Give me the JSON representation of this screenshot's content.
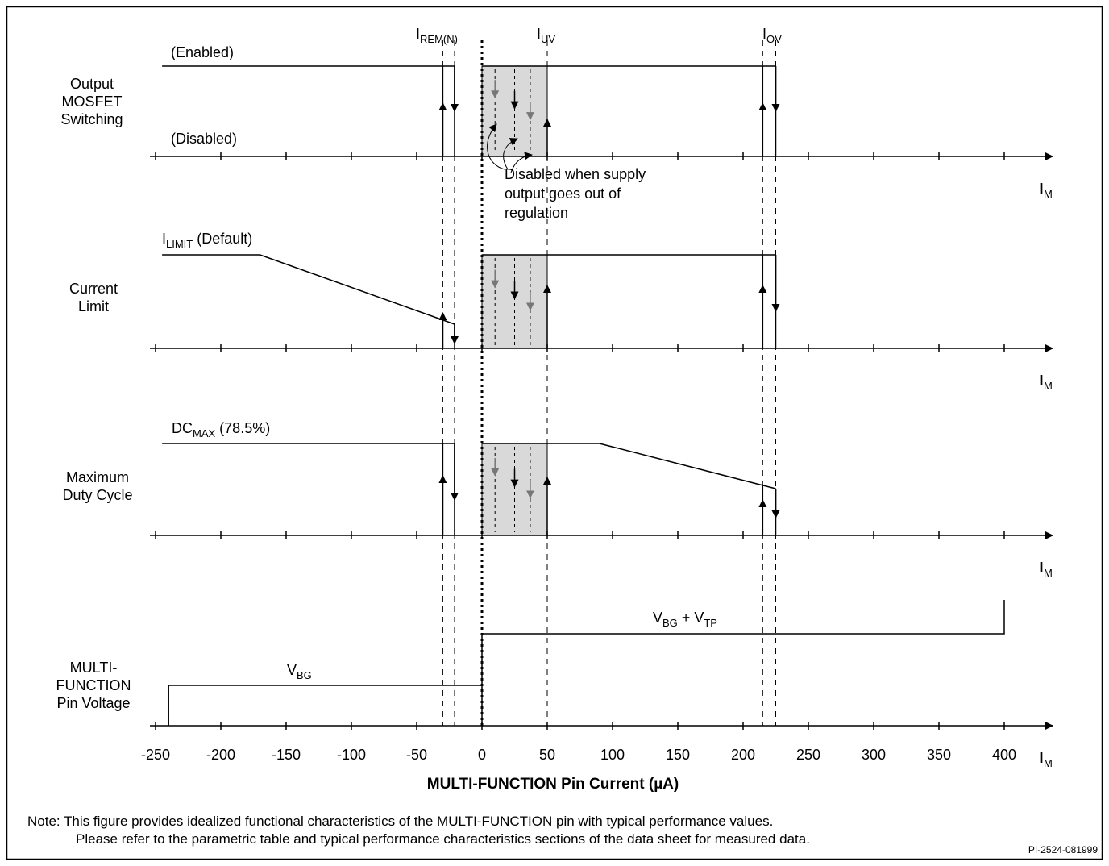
{
  "figure_id": "PI-2524-081999",
  "x_axis": {
    "title": "MULTI-FUNCTION Pin Current (µA)",
    "variable": "I",
    "variable_sub": "M",
    "ticks": [
      "-250",
      "-200",
      "-150",
      "-100",
      "-50",
      "0",
      "50",
      "100",
      "150",
      "200",
      "250",
      "300",
      "350",
      "400"
    ]
  },
  "thresholds": [
    {
      "name": "I",
      "sub": "REM(N)",
      "current_uA": -30
    },
    {
      "name": "I",
      "sub": "UV",
      "current_uA": 50
    },
    {
      "name": "I",
      "sub": "OV",
      "current_uA": 225
    }
  ],
  "panels": {
    "switching": {
      "row_label": [
        "Output",
        "MOSFET",
        "Switching"
      ],
      "enabled_label": "(Enabled)",
      "disabled_label": "(Disabled)",
      "annotation": [
        "Disabled when supply",
        "output goes out of",
        "regulation"
      ]
    },
    "current_limit": {
      "row_label": [
        "Current",
        "Limit"
      ],
      "curve_label_main": "I",
      "curve_label_sub": "LIMIT",
      "curve_label_tail": " (Default)"
    },
    "duty_cycle": {
      "row_label": [
        "Maximum",
        "Duty Cycle"
      ],
      "curve_label_main": "DC",
      "curve_label_sub": "MAX",
      "curve_label_tail": " (78.5%)"
    },
    "pin_voltage": {
      "row_label": [
        "MULTI-",
        "FUNCTION",
        "Pin Voltage"
      ],
      "low_label_main": "V",
      "low_label_sub": "BG",
      "high_label_main1": "V",
      "high_label_sub1": "BG",
      "high_label_mid": " + V",
      "high_label_sub2": "TP"
    }
  },
  "note_lines": [
    "Note: This figure provides idealized functional characteristics of the MULTI-FUNCTION pin with typical performance values.",
    "Please refer to the parametric table and typical performance characteristics sections of the data sheet for measured data."
  ]
}
